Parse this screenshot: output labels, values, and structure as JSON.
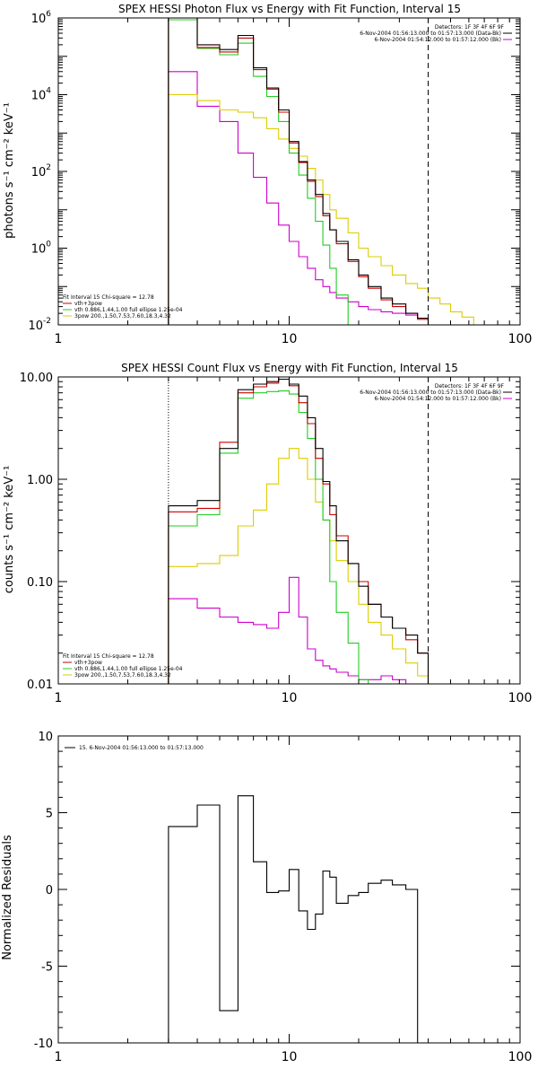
{
  "chart_data": [
    {
      "type": "line",
      "title": "SPEX HESSI Photon Flux vs Energy with Fit Function, Interval 15",
      "ylabel": "photons s⁻¹ cm⁻² keV⁻¹",
      "xlabel": "",
      "xscale": "log",
      "yscale": "log",
      "xlim": [
        1,
        100
      ],
      "ylim": [
        0.01,
        1000000
      ],
      "x_ticks": [
        {
          "value": 1,
          "label": "1"
        },
        {
          "value": 10,
          "label": "10"
        },
        {
          "value": 100,
          "label": "100"
        }
      ],
      "y_ticks": [
        {
          "value": 0.01,
          "base": "10",
          "exp": "-2"
        },
        {
          "value": 1,
          "base": "10",
          "exp": "0"
        },
        {
          "value": 100,
          "base": "10",
          "exp": "2"
        },
        {
          "value": 10000,
          "base": "10",
          "exp": "4"
        },
        {
          "value": 1000000,
          "base": "10",
          "exp": "6"
        }
      ],
      "fit_range_line_x": 3,
      "dashed_line_x": 40,
      "bin_edges": [
        3,
        4,
        5,
        6,
        7,
        8,
        9,
        10,
        11,
        12,
        13,
        14,
        15,
        16,
        18,
        20,
        22,
        25,
        28,
        32,
        36,
        40,
        45,
        50,
        56,
        63,
        70
      ],
      "series": [
        {
          "name": "Data",
          "color": "#000000",
          "values": [
            1200000,
            200000,
            150000,
            350000,
            50000,
            15000,
            4000,
            600,
            180,
            60,
            25,
            8,
            3,
            1.5,
            0.5,
            0.2,
            0.1,
            0.05,
            0.035,
            0.02,
            0.015,
            null,
            null,
            null,
            null,
            null
          ]
        },
        {
          "name": "vth+3pow",
          "color": "#cc0000",
          "values": [
            1000000,
            170000,
            130000,
            300000,
            45000,
            14000,
            3500,
            550,
            170,
            55,
            22,
            7,
            3,
            1.3,
            0.45,
            0.18,
            0.09,
            0.045,
            0.03,
            0.02,
            0.014,
            null,
            null,
            null,
            null,
            null
          ]
        },
        {
          "name": "vth",
          "color": "#22cc22",
          "values": [
            900000,
            160000,
            110000,
            220000,
            30000,
            9000,
            2000,
            300,
            80,
            20,
            5,
            1.2,
            0.3,
            0.06,
            0.01,
            0.005,
            null,
            null,
            null,
            null,
            null,
            null,
            null,
            null,
            null,
            null
          ]
        },
        {
          "name": "3pow",
          "color": "#ddcc00",
          "values": [
            10000,
            7000,
            4000,
            3500,
            2500,
            1300,
            700,
            400,
            250,
            120,
            60,
            25,
            10,
            6,
            2.5,
            1,
            0.6,
            0.35,
            0.2,
            0.12,
            0.09,
            0.05,
            0.035,
            0.022,
            0.016,
            0.01
          ]
        },
        {
          "name": "Bk",
          "color": "#cc00cc",
          "values": [
            40000,
            5000,
            2000,
            300,
            70,
            15,
            4,
            1.5,
            0.6,
            0.3,
            0.15,
            0.1,
            0.07,
            0.05,
            0.04,
            0.03,
            0.025,
            0.022,
            0.02,
            0.018,
            0.015,
            null,
            null,
            null,
            null,
            null
          ]
        }
      ],
      "legend_top_right": {
        "header": "Detectors: 1F 3F 4F 6F 9F",
        "items": [
          {
            "text": "6-Nov-2004 01:56:13.000 to 01:57:13.000 (Data-Bk)",
            "color": "#000000"
          },
          {
            "text": "6-Nov-2004 01:54:12.000 to 01:57:12.000 (Bk)",
            "color": "#cc00cc"
          }
        ]
      },
      "legend_bottom_left": {
        "header": "Fit Interval 15   Chi-square = 12.78",
        "items": [
          {
            "text": "vth+3pow",
            "color": "#cc0000"
          },
          {
            "text": "vth 0.886,1.44,1.00  full ellipse 1.25e-04",
            "color": "#22cc22"
          },
          {
            "text": "3pow 200.,1.50,7.53,7.60,18.3,4.32",
            "color": "#ddcc00"
          }
        ]
      }
    },
    {
      "type": "line",
      "title": "SPEX HESSI Count Flux vs Energy with Fit Function, Interval 15",
      "ylabel": "counts s⁻¹ cm⁻² keV⁻¹",
      "xlabel": "",
      "xscale": "log",
      "yscale": "log",
      "xlim": [
        1,
        100
      ],
      "ylim": [
        0.01,
        10
      ],
      "x_ticks": [
        {
          "value": 1,
          "label": "1"
        },
        {
          "value": 10,
          "label": "10"
        },
        {
          "value": 100,
          "label": "100"
        }
      ],
      "y_ticks": [
        {
          "value": 0.01,
          "label": "0.01"
        },
        {
          "value": 0.1,
          "label": "0.10"
        },
        {
          "value": 1,
          "label": "1.00"
        },
        {
          "value": 10,
          "label": "10.00"
        }
      ],
      "fit_range_line_x": 3,
      "dashed_line_x": 40,
      "bin_edges": [
        3,
        4,
        5,
        6,
        7,
        8,
        9,
        10,
        11,
        12,
        13,
        14,
        15,
        16,
        18,
        20,
        22,
        25,
        28,
        32,
        36,
        40,
        45
      ],
      "series": [
        {
          "name": "Data",
          "color": "#000000",
          "values": [
            0.55,
            0.62,
            2.0,
            7.5,
            8.5,
            9.0,
            9.5,
            8.5,
            6.5,
            4.0,
            2.0,
            0.95,
            0.55,
            0.25,
            0.15,
            0.09,
            0.06,
            0.045,
            0.035,
            0.03,
            0.02,
            null
          ]
        },
        {
          "name": "vth+3pow",
          "color": "#cc0000",
          "values": [
            0.48,
            0.52,
            2.3,
            7.0,
            8.0,
            8.7,
            10.0,
            8.2,
            5.6,
            3.5,
            1.6,
            0.9,
            0.45,
            0.28,
            0.15,
            0.1,
            0.06,
            0.045,
            0.035,
            0.027,
            0.02,
            null
          ]
        },
        {
          "name": "vth",
          "color": "#22cc22",
          "values": [
            0.35,
            0.45,
            1.8,
            6.2,
            7.0,
            7.2,
            7.3,
            6.8,
            4.5,
            2.5,
            1.0,
            0.4,
            0.1,
            0.05,
            0.025,
            0.011,
            null,
            null,
            null,
            null,
            null,
            null
          ]
        },
        {
          "name": "3pow",
          "color": "#ddcc00",
          "values": [
            0.14,
            0.15,
            0.18,
            0.35,
            0.5,
            0.9,
            1.6,
            2.0,
            1.6,
            1.0,
            0.6,
            0.4,
            0.25,
            0.16,
            0.1,
            0.06,
            0.04,
            0.03,
            0.022,
            0.016,
            0.012,
            0.01
          ]
        },
        {
          "name": "Bk",
          "color": "#cc00cc",
          "values": [
            0.068,
            0.055,
            0.045,
            0.04,
            0.038,
            0.035,
            0.05,
            0.11,
            0.045,
            0.022,
            0.017,
            0.015,
            0.014,
            0.013,
            0.012,
            0.011,
            0.011,
            0.012,
            0.011,
            0.01,
            0.01,
            null
          ]
        }
      ],
      "legend_top_right": {
        "header": "Detectors: 1F 3F 4F 6F 9F",
        "items": [
          {
            "text": "6-Nov-2004 01:56:13.000 to 01:57:13.000 (Data-Bk)",
            "color": "#000000"
          },
          {
            "text": "6-Nov-2004 01:54:12.000 to 01:57:12.000 (Bk)",
            "color": "#cc00cc"
          }
        ]
      },
      "legend_bottom_left": {
        "header": "Fit Interval 15   Chi-square = 12.78",
        "items": [
          {
            "text": "vth+3pow",
            "color": "#cc0000"
          },
          {
            "text": "vth 0.886,1.44,1.00  full ellipse 1.25e-04",
            "color": "#22cc22"
          },
          {
            "text": "3pow 200.,1.50,7.53,7.60,18.3,4.32",
            "color": "#ddcc00"
          }
        ]
      }
    },
    {
      "type": "line",
      "title": "",
      "ylabel": "Normalized Residuals",
      "xlabel": "",
      "xscale": "log",
      "yscale": "linear",
      "xlim": [
        1,
        100
      ],
      "ylim": [
        -10,
        10
      ],
      "x_ticks": [
        {
          "value": 1,
          "label": "1"
        },
        {
          "value": 10,
          "label": "10"
        },
        {
          "value": 100,
          "label": "100"
        }
      ],
      "y_ticks": [
        {
          "value": -10,
          "label": "-10"
        },
        {
          "value": -5,
          "label": "-5"
        },
        {
          "value": 0,
          "label": "0"
        },
        {
          "value": 5,
          "label": "5"
        },
        {
          "value": 10,
          "label": "10"
        }
      ],
      "bin_edges": [
        3,
        4,
        5,
        6,
        7,
        8,
        9,
        10,
        11,
        12,
        13,
        14,
        15,
        16,
        18,
        20,
        22,
        25,
        28,
        32,
        36,
        40
      ],
      "series": [
        {
          "name": "15.  6-Nov-2004 01:56:13.000 to 01:57:13.000",
          "color": "#000000",
          "values": [
            4.1,
            5.5,
            -7.9,
            6.1,
            1.8,
            -0.2,
            -0.1,
            1.3,
            -1.4,
            -2.6,
            -1.6,
            1.2,
            0.8,
            -0.9,
            -0.4,
            -0.2,
            0.4,
            0.6,
            0.3,
            0.0
          ]
        }
      ],
      "legend_top_right": null,
      "legend_bottom_left": null
    }
  ]
}
